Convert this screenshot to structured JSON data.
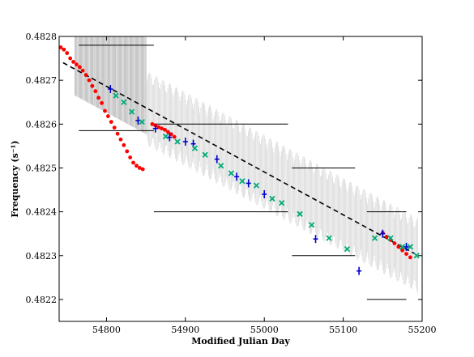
{
  "chart_data": {
    "type": "scatter",
    "xlabel": "Modified Julian Day",
    "ylabel": "Frequency (s⁻¹)",
    "xlim": [
      54740,
      55200
    ],
    "ylim": [
      0.48215,
      0.4828
    ],
    "x_ticks": [
      54800,
      54900,
      55000,
      55100,
      55200
    ],
    "x_tick_labels": [
      "54800",
      "54900",
      "55000",
      "55100",
      "55200"
    ],
    "y_ticks": [
      0.4822,
      0.4823,
      0.4824,
      0.4825,
      0.4826,
      0.4827,
      0.4828
    ],
    "y_tick_labels": [
      "0.4822",
      "0.4823",
      "0.4824",
      "0.4825",
      "0.4826",
      "0.4827",
      "0.4828"
    ],
    "grid": false,
    "colors": {
      "red": "#ff0000",
      "blue": "#0000cc",
      "green": "#00aa77",
      "gray": "#888888",
      "black": "#000000"
    },
    "fit_line": {
      "style": "dashed",
      "points": [
        [
          54745,
          0.48274
        ],
        [
          55190,
          0.482305
        ]
      ]
    },
    "horizontal_segments": [
      {
        "x": [
          54765,
          54860
        ],
        "y": 0.48278
      },
      {
        "x": [
          54765,
          54860
        ],
        "y": 0.482585
      },
      {
        "x": [
          54860,
          55030
        ],
        "y": 0.4826
      },
      {
        "x": [
          54860,
          55030
        ],
        "y": 0.4824
      },
      {
        "x": [
          55035,
          55115
        ],
        "y": 0.4825
      },
      {
        "x": [
          55035,
          55115
        ],
        "y": 0.4823
      },
      {
        "x": [
          55130,
          55180
        ],
        "y": 0.4824
      },
      {
        "x": [
          55130,
          55180
        ],
        "y": 0.4822
      }
    ],
    "series": [
      {
        "marker": "dot",
        "color": "red",
        "x": [
          54742,
          54746,
          54750,
          54754,
          54758,
          54762,
          54766,
          54770,
          54774,
          54778,
          54782,
          54786,
          54790,
          54794,
          54798,
          54802,
          54806,
          54810,
          54814,
          54818,
          54822,
          54826,
          54830,
          54834,
          54838,
          54842,
          54846
        ],
        "y": [
          0.482775,
          0.48277,
          0.482762,
          0.48275,
          0.482742,
          0.482736,
          0.48273,
          0.482722,
          0.482712,
          0.4827,
          0.482687,
          0.482675,
          0.48266,
          0.482648,
          0.48263,
          0.482618,
          0.482605,
          0.482592,
          0.482578,
          0.482565,
          0.482552,
          0.482538,
          0.482524,
          0.482512,
          0.482505,
          0.4825,
          0.482497
        ]
      },
      {
        "marker": "dot",
        "color": "red",
        "x": [
          54858,
          54862,
          54866,
          54870,
          54874,
          54878,
          54882,
          54886
        ],
        "y": [
          0.4826,
          0.482597,
          0.482593,
          0.48259,
          0.482587,
          0.482582,
          0.482577,
          0.482571
        ]
      },
      {
        "marker": "dot",
        "color": "red",
        "x": [
          55150,
          55155,
          55160,
          55165,
          55170,
          55175,
          55180,
          55185
        ],
        "y": [
          0.482352,
          0.482343,
          0.482336,
          0.482328,
          0.48232,
          0.482312,
          0.482304,
          0.482296
        ]
      },
      {
        "marker": "cross",
        "color": "blue",
        "x": [
          54805,
          54840,
          54862,
          54880,
          54900,
          54910,
          54940,
          54965,
          54980,
          55000,
          55065,
          55120,
          55150,
          55180
        ],
        "y": [
          0.48268,
          0.482608,
          0.48259,
          0.48257,
          0.48256,
          0.482555,
          0.48252,
          0.48248,
          0.482465,
          0.48244,
          0.482338,
          0.482265,
          0.48235,
          0.48232
        ]
      },
      {
        "marker": "x",
        "color": "green",
        "x": [
          54812,
          54822,
          54832,
          54845,
          54875,
          54890,
          54912,
          54925,
          54945,
          54958,
          54972,
          54990,
          55010,
          55022,
          55045,
          55060,
          55082,
          55105,
          55140,
          55160,
          55175,
          55185,
          55193
        ],
        "y": [
          0.482665,
          0.48265,
          0.482628,
          0.482605,
          0.482572,
          0.48256,
          0.482545,
          0.48253,
          0.482505,
          0.482488,
          0.48247,
          0.48246,
          0.48243,
          0.48242,
          0.482395,
          0.48237,
          0.48234,
          0.482315,
          0.48234,
          0.48234,
          0.48232,
          0.48232,
          0.4823
        ]
      }
    ]
  }
}
